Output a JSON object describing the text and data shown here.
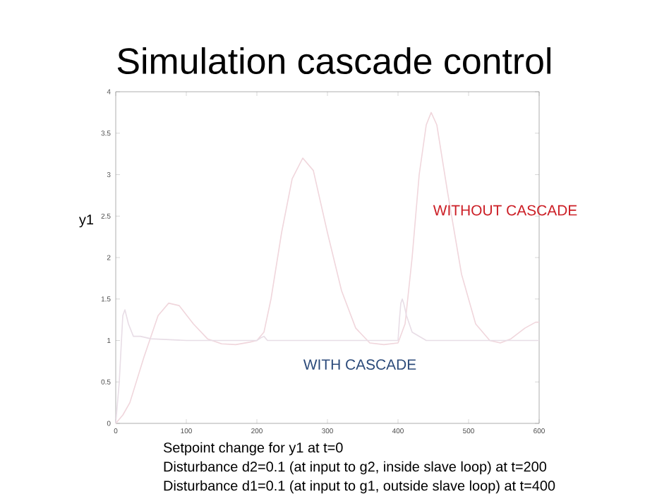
{
  "chart_data": {
    "type": "line",
    "title": "Simulation cascade control",
    "ylabel": "y1",
    "xlim": [
      0,
      600
    ],
    "ylim": [
      0,
      4
    ],
    "xticks": [
      0,
      100,
      200,
      300,
      400,
      500,
      600
    ],
    "yticks": [
      0,
      0.5,
      1,
      1.5,
      2,
      2.5,
      3,
      3.5,
      4
    ],
    "grid": false,
    "marker": "none",
    "line_style": "solid",
    "series": [
      {
        "name": "WITHOUT CASCADE",
        "color": "#f0d6dc",
        "x": [
          0,
          10,
          20,
          40,
          60,
          75,
          90,
          110,
          130,
          150,
          170,
          190,
          200,
          210,
          220,
          235,
          250,
          265,
          280,
          300,
          320,
          340,
          360,
          380,
          400,
          410,
          420,
          430,
          440,
          447,
          455,
          470,
          490,
          510,
          530,
          545,
          560,
          580,
          595,
          600
        ],
        "values": [
          0,
          0.1,
          0.25,
          0.8,
          1.3,
          1.45,
          1.42,
          1.2,
          1.02,
          0.96,
          0.95,
          0.98,
          1.0,
          1.1,
          1.5,
          2.3,
          2.95,
          3.2,
          3.05,
          2.3,
          1.6,
          1.15,
          0.97,
          0.95,
          0.97,
          1.2,
          2.0,
          3.0,
          3.6,
          3.75,
          3.6,
          2.8,
          1.8,
          1.2,
          1.0,
          0.97,
          1.02,
          1.15,
          1.22,
          1.22
        ]
      },
      {
        "name": "WITH CASCADE",
        "color": "#e8dde6",
        "x": [
          0,
          5,
          10,
          13,
          18,
          25,
          35,
          50,
          100,
          200,
          205,
          210,
          215,
          250,
          400,
          402,
          404,
          406,
          408,
          412,
          420,
          440,
          600
        ],
        "values": [
          0,
          0.5,
          1.3,
          1.37,
          1.2,
          1.05,
          1.05,
          1.02,
          1.0,
          1.0,
          1.03,
          1.05,
          1.0,
          1.0,
          1.0,
          1.25,
          1.45,
          1.5,
          1.45,
          1.3,
          1.1,
          1.0,
          1.0
        ]
      }
    ],
    "annotations": [
      "Setpoint change for y1 at t=0",
      "Disturbance d2=0.1 (at input to g2, inside slave loop) at t=200",
      "Disturbance d1=0.1 (at input to g1, outside slave loop) at t=400"
    ]
  }
}
